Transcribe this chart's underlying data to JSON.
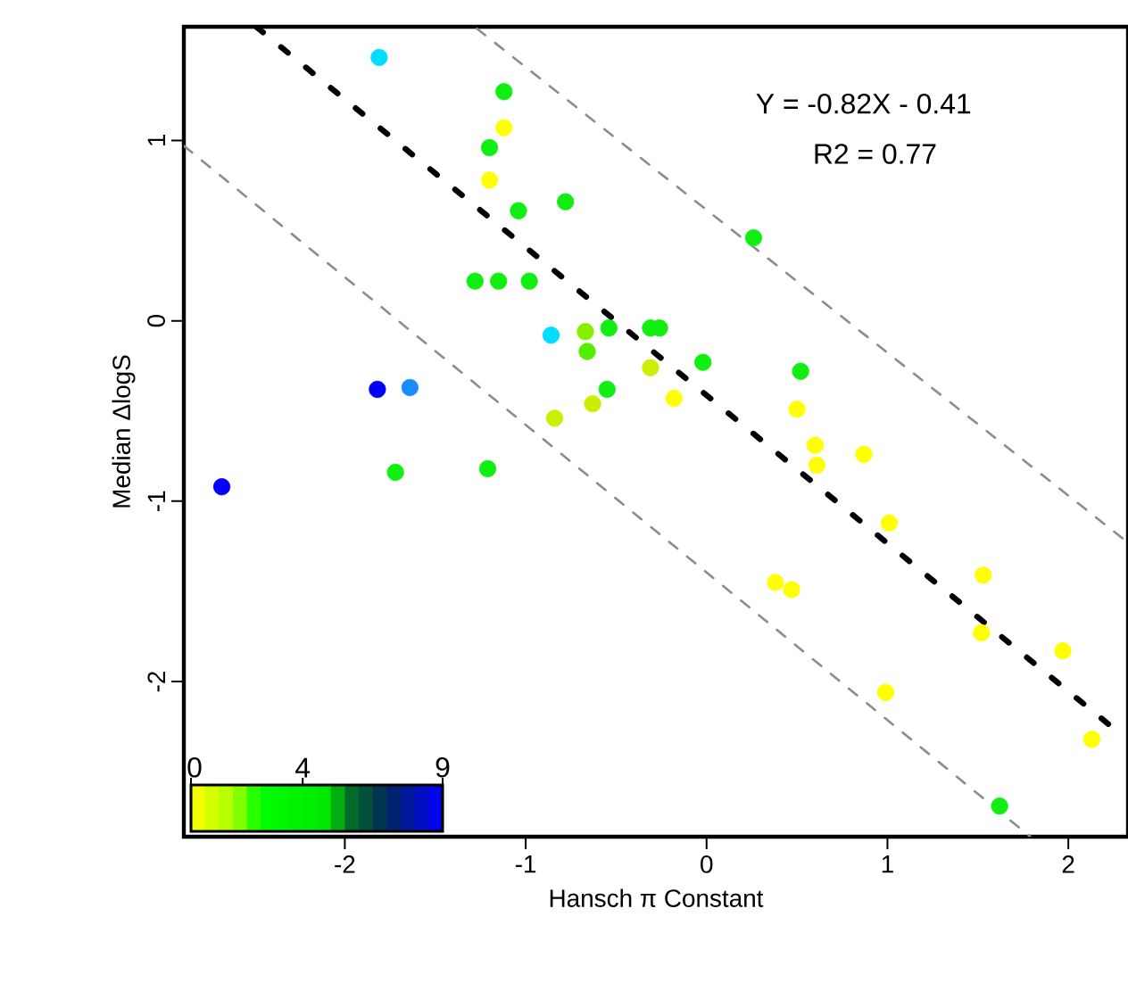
{
  "chart_data": {
    "type": "scatter",
    "xlabel": "Hansch π Constant",
    "ylabel": "Median ΔlogS",
    "xlim": [
      -2.89,
      2.33
    ],
    "ylim": [
      -2.86,
      1.63
    ],
    "xticks": [
      -2,
      -1,
      0,
      1,
      2
    ],
    "yticks": [
      -2,
      -1,
      0,
      1
    ],
    "grid": false,
    "annotations": [
      "Y = -0.82X - 0.41",
      "R2 = 0.77",
      "0",
      "4",
      "9"
    ],
    "series": [
      {
        "marker": "circle",
        "x": [
          -1.81,
          -1.12,
          -1.12,
          -1.2,
          -1.2,
          -1.04,
          -0.78,
          0.26,
          -1.28,
          -1.15,
          -0.98,
          -0.86,
          -0.67,
          -0.66,
          -0.54,
          -0.31,
          -0.26,
          -0.31,
          -0.02,
          0.52,
          -0.84,
          -0.63,
          -0.55,
          -0.18,
          0.5,
          0.6,
          0.61,
          0.87,
          -1.82,
          -1.64,
          -2.68,
          -1.72,
          -1.21,
          1.01,
          0.38,
          0.47,
          1.53,
          1.52,
          1.97,
          0.99,
          2.13,
          1.62
        ],
        "values": [
          1.46,
          1.27,
          1.07,
          0.96,
          0.78,
          0.61,
          0.66,
          0.46,
          0.22,
          0.22,
          0.22,
          -0.08,
          -0.06,
          -0.17,
          -0.04,
          -0.04,
          -0.04,
          -0.26,
          -0.23,
          -0.28,
          -0.54,
          -0.46,
          -0.38,
          -0.43,
          -0.49,
          -0.69,
          -0.8,
          -0.74,
          -0.38,
          -0.37,
          -0.92,
          -0.84,
          -0.82,
          -1.12,
          -1.45,
          -1.49,
          -1.41,
          -1.73,
          -1.83,
          -2.06,
          -2.32,
          -2.69
        ],
        "colors": [
          "#00ddff",
          "#11ee11",
          "#ffff00",
          "#11ee11",
          "#ffff00",
          "#11ee11",
          "#11ee11",
          "#11ee11",
          "#11ee11",
          "#11ee11",
          "#11ee11",
          "#00ddff",
          "#88ee00",
          "#55ee00",
          "#11ee11",
          "#11ee11",
          "#11ee11",
          "#ccee00",
          "#11ee11",
          "#11ee11",
          "#ccee00",
          "#ccee00",
          "#11ee11",
          "#ffff00",
          "#ffff00",
          "#ffff00",
          "#ffff00",
          "#ffff00",
          "#0000ff",
          "#1a8cff",
          "#0000ff",
          "#11ee11",
          "#11ee11",
          "#ffff00",
          "#ffff00",
          "#ffff00",
          "#ffff00",
          "#ffff00",
          "#ffff00",
          "#ffff00",
          "#ffff00",
          "#11ee11"
        ]
      },
      {
        "type": "line",
        "x": [
          -2.49,
          2.3
        ],
        "values": [
          1.63,
          -2.3
        ],
        "color": "#000000",
        "line_style": "dashed"
      },
      {
        "type": "line",
        "x": [
          -1.27,
          2.33
        ],
        "values": [
          1.62,
          -1.23
        ],
        "color": "#8c8c8c",
        "line_style": "dashed"
      },
      {
        "type": "line",
        "x": [
          -2.89,
          1.79
        ],
        "values": [
          0.97,
          -2.86
        ],
        "color": "#8c8c8c",
        "line_style": "dashed"
      }
    ]
  }
}
